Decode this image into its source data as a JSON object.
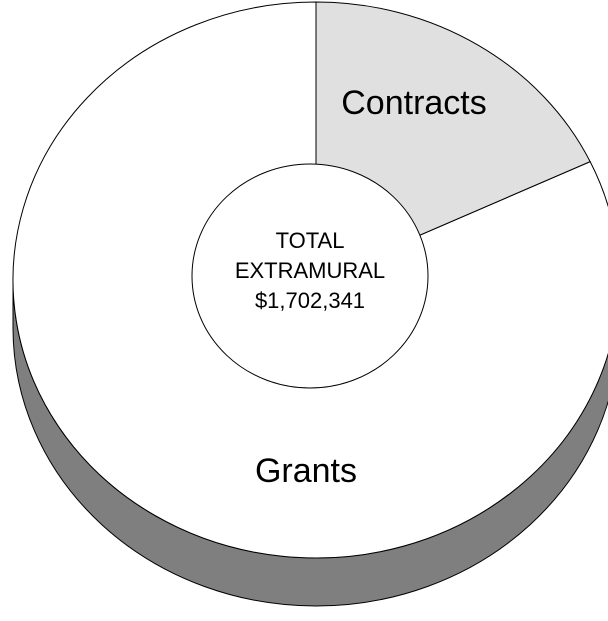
{
  "chart_data": {
    "type": "pie",
    "categories": [
      "Contracts",
      "Grants"
    ],
    "values": [
      18,
      82
    ],
    "center_label": [
      "TOTAL",
      "EXTRAMURAL",
      "$1,702,341"
    ],
    "colors": {
      "Contracts": "#e0e0e0",
      "Grants": "#ffffff",
      "side": "#7f7f7f",
      "edge": "#000000"
    }
  }
}
